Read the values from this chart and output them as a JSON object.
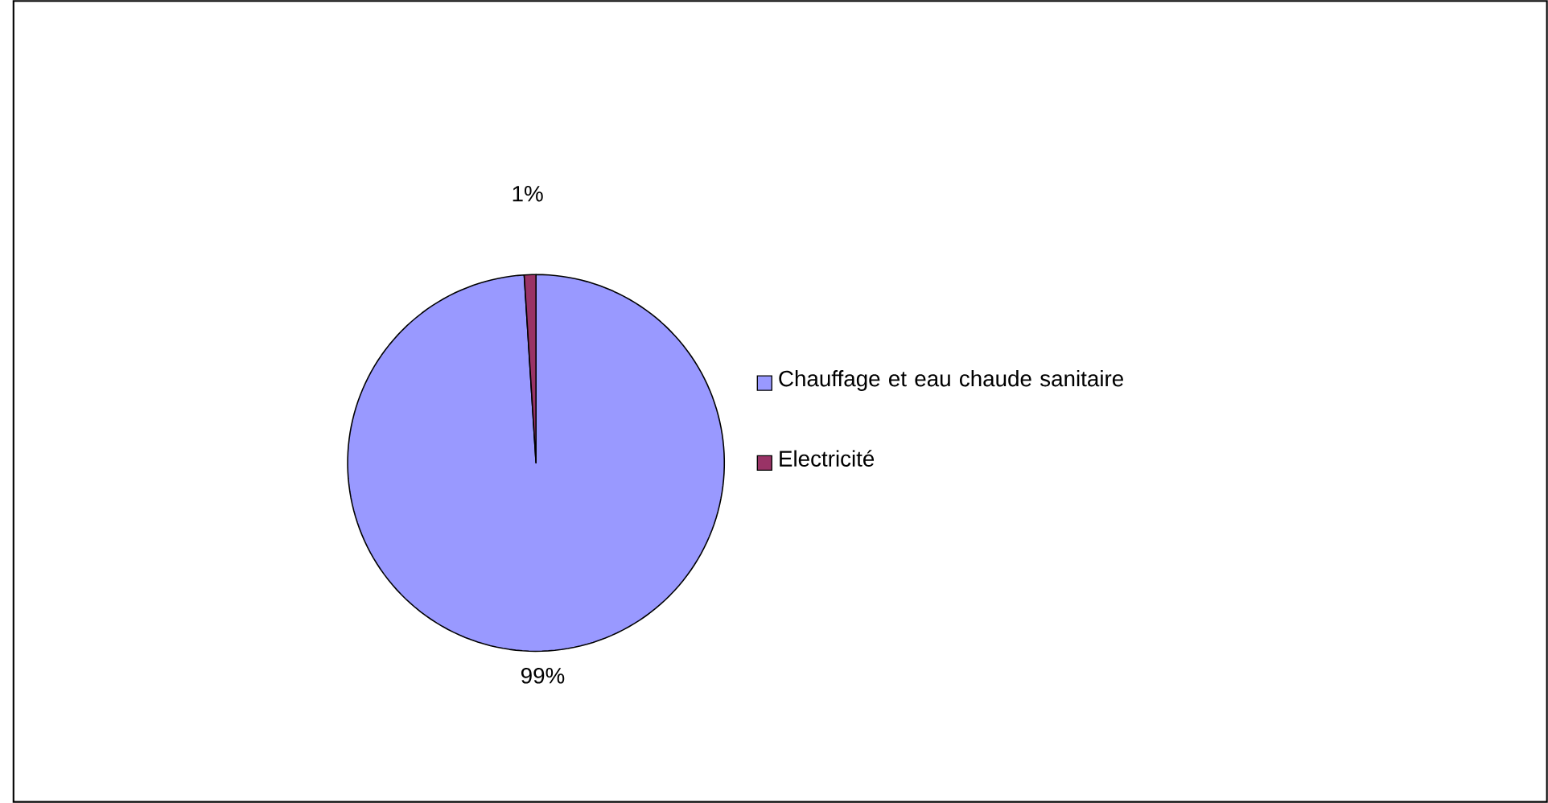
{
  "chart_data": {
    "type": "pie",
    "categories": [
      "Chauffage et eau chaude sanitaire",
      "Electricité"
    ],
    "values": [
      99,
      1
    ],
    "colors": [
      "#9999ff",
      "#993366"
    ],
    "value_labels": [
      "99%",
      "1%"
    ],
    "legend": "right"
  }
}
